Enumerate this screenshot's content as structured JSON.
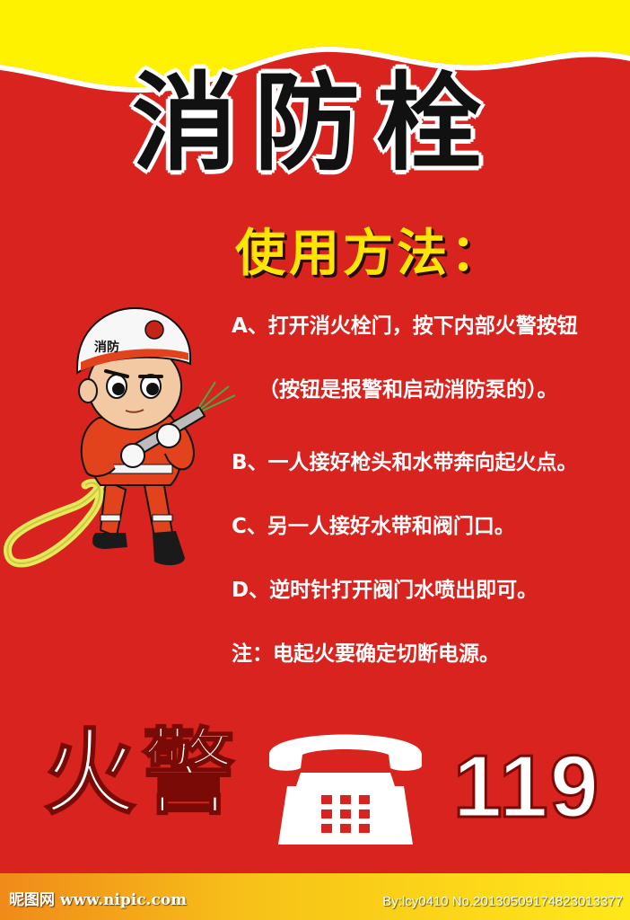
{
  "poster": {
    "title": "消防栓",
    "subtitle": "使用方法：",
    "steps": [
      "A、打开消火栓门，按下内部火警按钮",
      "（按钮是报警和启动消防泵的）。",
      "B、一人接好枪头和水带奔向起火点。",
      "C、另一人接好水带和阀门口。",
      "D、逆时针打开阀门水喷出即可。",
      "注：电起火要确定切断电源。"
    ],
    "alarm_word": "火警",
    "alarm_number": "119",
    "helmet_text": "消防",
    "icons": [
      "firefighter-illustration",
      "telephone-icon"
    ],
    "colors": {
      "background": "#d8231e",
      "banner": "#fff200",
      "subtitle": "#ffe600",
      "text": "#ffffff"
    }
  },
  "footer": {
    "site": "昵图网 www.nipic.com",
    "id": "By:lcy0410  No.20130509174823013377"
  }
}
